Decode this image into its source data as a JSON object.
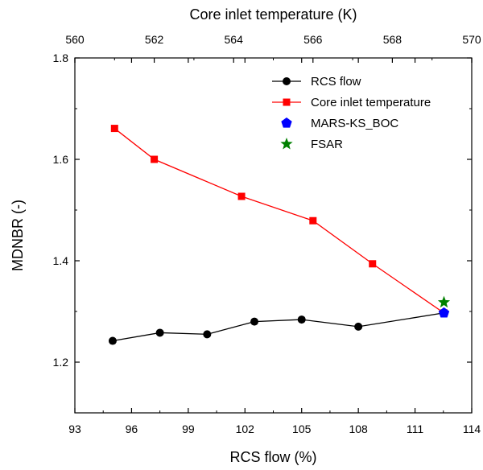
{
  "chart_data": {
    "type": "line",
    "xlabel": "RCS flow (%)",
    "ylabel": "MDNBR (-)",
    "x2label": "Core inlet temperature (K)",
    "xlim": [
      93,
      114
    ],
    "x2lim": [
      560,
      570
    ],
    "ylim": [
      1.1,
      1.8
    ],
    "x_ticks": [
      "93",
      "96",
      "99",
      "102",
      "105",
      "108",
      "111",
      "114"
    ],
    "x2_ticks": [
      "560",
      "562",
      "564",
      "566",
      "568",
      "570"
    ],
    "y_ticks": [
      "1.2",
      "1.4",
      "1.6",
      "1.8"
    ],
    "grid": false,
    "legend_position": "top-right",
    "series": [
      {
        "name": "RCS flow",
        "axis": "bottom",
        "color": "#000000",
        "marker": "circle",
        "x": [
          95,
          97.5,
          100,
          102.5,
          105,
          108,
          112.5
        ],
        "y": [
          1.242,
          1.258,
          1.255,
          1.28,
          1.284,
          1.27,
          1.297
        ]
      },
      {
        "name": "Core inlet temperature",
        "axis": "top",
        "color": "#ff0000",
        "marker": "square",
        "x": [
          561,
          562,
          564.2,
          566,
          567.5,
          569.3
        ],
        "y": [
          1.661,
          1.6,
          1.527,
          1.479,
          1.394,
          1.297
        ]
      },
      {
        "name": "MARS-KS_BOC",
        "axis": "top",
        "color": "#0000ff",
        "marker": "pentagon",
        "x": [
          569.3
        ],
        "y": [
          1.297
        ]
      },
      {
        "name": "FSAR",
        "axis": "top",
        "color": "#008000",
        "marker": "star",
        "x": [
          569.3
        ],
        "y": [
          1.318
        ]
      }
    ]
  }
}
